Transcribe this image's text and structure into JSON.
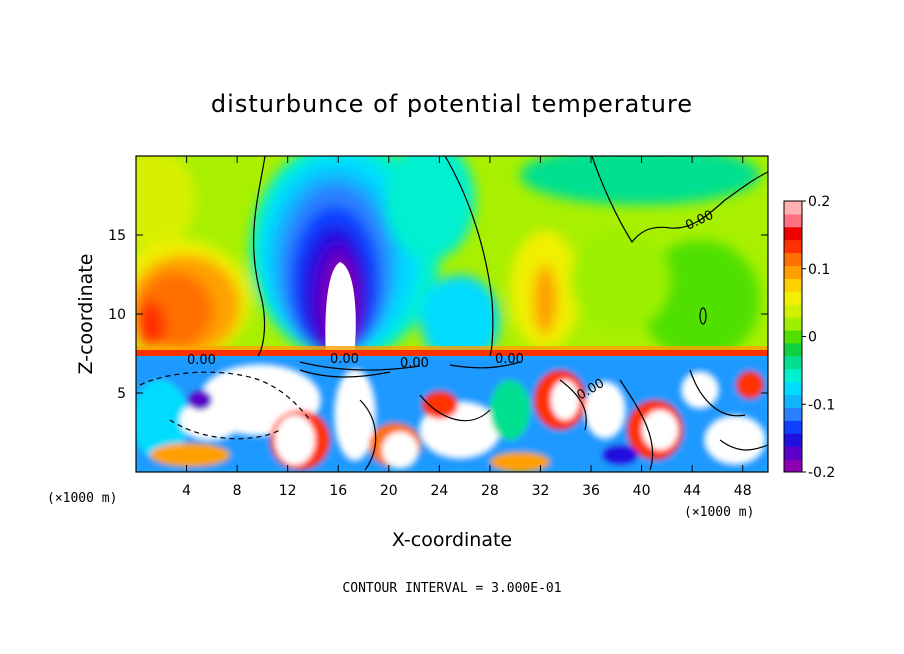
{
  "chart_data": {
    "type": "heatmap",
    "title": "disturbunce of potential temperature",
    "xlabel": "X-coordinate",
    "ylabel": "Z-coordinate",
    "x_unit_left": "(×1000 m)",
    "x_unit_right": "(×1000 m)",
    "xlim": [
      0,
      50
    ],
    "ylim": [
      0,
      20
    ],
    "x_ticks": [
      4,
      8,
      12,
      16,
      20,
      24,
      28,
      32,
      36,
      40,
      44,
      48
    ],
    "y_ticks": [
      5,
      10,
      15
    ],
    "colorbar": {
      "min": -0.2,
      "max": 0.2,
      "tick_labels": [
        "0.2",
        "0.1",
        "0",
        "-0.1",
        "-0.2"
      ],
      "tick_values": [
        0.2,
        0.1,
        0,
        -0.1,
        -0.2
      ],
      "colors": [
        "#8c00b0",
        "#5a00c8",
        "#2010e0",
        "#1040ff",
        "#2a80ff",
        "#10b4ff",
        "#00dcff",
        "#00f0d0",
        "#00e090",
        "#10d040",
        "#50e000",
        "#9cf000",
        "#d0f000",
        "#f0f000",
        "#ffd000",
        "#ffa000",
        "#ff7000",
        "#ff3000",
        "#f00000",
        "#ff7080",
        "#ffb0b0"
      ]
    },
    "contour_labels": [
      "0.00",
      "0.00",
      "0.00",
      "0.00",
      "0.00",
      "0.00"
    ],
    "footer": "CONTOUR INTERVAL = 3.000E-01"
  }
}
